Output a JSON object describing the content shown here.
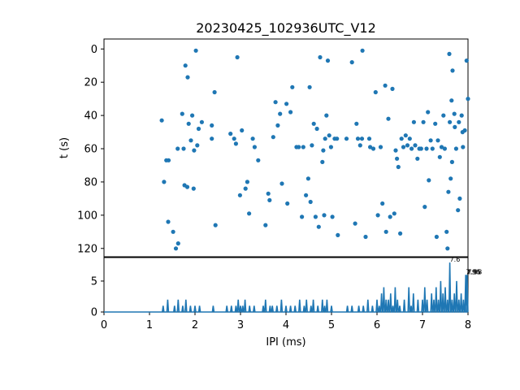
{
  "chart_data": [
    {
      "type": "scatter",
      "title": "20230425_102936UTC_V12",
      "xlabel": "",
      "ylabel": "t (s)",
      "xlim": [
        0,
        8
      ],
      "ylim": [
        125,
        -6
      ],
      "y_inverted": true,
      "yticks": [
        "0",
        "20",
        "40",
        "60",
        "80",
        "100",
        "120"
      ],
      "color": "#1f77b4",
      "points": [
        [
          1.27,
          43
        ],
        [
          1.32,
          80
        ],
        [
          1.37,
          67
        ],
        [
          1.42,
          67
        ],
        [
          1.41,
          104
        ],
        [
          1.52,
          110
        ],
        [
          1.58,
          120
        ],
        [
          1.63,
          117
        ],
        [
          1.62,
          60
        ],
        [
          1.72,
          39
        ],
        [
          1.75,
          60
        ],
        [
          1.77,
          82
        ],
        [
          1.83,
          83
        ],
        [
          1.79,
          10
        ],
        [
          1.84,
          17
        ],
        [
          1.86,
          45
        ],
        [
          1.91,
          55
        ],
        [
          1.94,
          40
        ],
        [
          1.97,
          84
        ],
        [
          2.02,
          1
        ],
        [
          2.05,
          58
        ],
        [
          2.08,
          48
        ],
        [
          2.15,
          44
        ],
        [
          1.98,
          61
        ],
        [
          2.37,
          54
        ],
        [
          2.37,
          46
        ],
        [
          2.43,
          26
        ],
        [
          2.45,
          106
        ],
        [
          2.78,
          51
        ],
        [
          2.86,
          54
        ],
        [
          2.9,
          57
        ],
        [
          2.93,
          5
        ],
        [
          2.99,
          88
        ],
        [
          3.03,
          49
        ],
        [
          3.11,
          84
        ],
        [
          3.15,
          80
        ],
        [
          3.19,
          99
        ],
        [
          3.27,
          54
        ],
        [
          3.31,
          59
        ],
        [
          3.39,
          67
        ],
        [
          3.55,
          106
        ],
        [
          3.61,
          87
        ],
        [
          3.64,
          91
        ],
        [
          3.72,
          53
        ],
        [
          3.77,
          32
        ],
        [
          3.82,
          46
        ],
        [
          3.87,
          39
        ],
        [
          3.91,
          81
        ],
        [
          4.01,
          33
        ],
        [
          4.03,
          93
        ],
        [
          4.1,
          38
        ],
        [
          4.14,
          23
        ],
        [
          4.23,
          59
        ],
        [
          4.28,
          59
        ],
        [
          4.35,
          101
        ],
        [
          4.38,
          59
        ],
        [
          4.44,
          88
        ],
        [
          4.49,
          78
        ],
        [
          4.52,
          23
        ],
        [
          4.54,
          92
        ],
        [
          4.57,
          58
        ],
        [
          4.61,
          45
        ],
        [
          4.65,
          101
        ],
        [
          4.68,
          48
        ],
        [
          4.72,
          107
        ],
        [
          4.75,
          5
        ],
        [
          4.8,
          68
        ],
        [
          4.82,
          61
        ],
        [
          4.84,
          100
        ],
        [
          4.86,
          54
        ],
        [
          4.89,
          40
        ],
        [
          4.92,
          7
        ],
        [
          4.95,
          52
        ],
        [
          4.99,
          59
        ],
        [
          5.02,
          101
        ],
        [
          5.07,
          54
        ],
        [
          5.12,
          54
        ],
        [
          5.14,
          112
        ],
        [
          5.33,
          54
        ],
        [
          5.45,
          8
        ],
        [
          5.52,
          105
        ],
        [
          5.55,
          45
        ],
        [
          5.58,
          54
        ],
        [
          5.63,
          58
        ],
        [
          5.67,
          54
        ],
        [
          5.68,
          1
        ],
        [
          5.75,
          113
        ],
        [
          5.83,
          54
        ],
        [
          5.85,
          59
        ],
        [
          5.92,
          60
        ],
        [
          5.97,
          26
        ],
        [
          6.02,
          100
        ],
        [
          6.08,
          59
        ],
        [
          6.12,
          93
        ],
        [
          6.18,
          22
        ],
        [
          6.2,
          110
        ],
        [
          6.25,
          42
        ],
        [
          6.29,
          101
        ],
        [
          6.34,
          24
        ],
        [
          6.38,
          99
        ],
        [
          6.41,
          61
        ],
        [
          6.44,
          66
        ],
        [
          6.47,
          71
        ],
        [
          6.51,
          111
        ],
        [
          6.54,
          54
        ],
        [
          6.58,
          59
        ],
        [
          6.63,
          52
        ],
        [
          6.67,
          58
        ],
        [
          6.72,
          54
        ],
        [
          6.76,
          60
        ],
        [
          6.81,
          44
        ],
        [
          6.84,
          58
        ],
        [
          6.89,
          66
        ],
        [
          6.93,
          60
        ],
        [
          6.97,
          60
        ],
        [
          7.02,
          44
        ],
        [
          7.05,
          95
        ],
        [
          7.09,
          60
        ],
        [
          7.12,
          38
        ],
        [
          7.14,
          79
        ],
        [
          7.18,
          55
        ],
        [
          7.22,
          60
        ],
        [
          7.28,
          45
        ],
        [
          7.31,
          113
        ],
        [
          7.34,
          55
        ],
        [
          7.38,
          65
        ],
        [
          7.42,
          59
        ],
        [
          7.46,
          40
        ],
        [
          7.49,
          60
        ],
        [
          7.53,
          110
        ],
        [
          7.57,
          86
        ],
        [
          7.6,
          44
        ],
        [
          7.62,
          78
        ],
        [
          7.65,
          68
        ],
        [
          7.7,
          39
        ],
        [
          7.74,
          60
        ],
        [
          7.78,
          97
        ],
        [
          7.82,
          90
        ],
        [
          7.86,
          40
        ],
        [
          7.89,
          59
        ],
        [
          7.93,
          49
        ],
        [
          7.97,
          7
        ],
        [
          8.0,
          30
        ],
        [
          7.59,
          3
        ],
        [
          7.66,
          13
        ],
        [
          7.55,
          120
        ],
        [
          7.64,
          31
        ],
        [
          7.71,
          47
        ],
        [
          7.8,
          44
        ],
        [
          7.88,
          50
        ]
      ]
    },
    {
      "type": "line",
      "xlabel": "IPI (ms)",
      "ylabel": "",
      "xlim": [
        0,
        8
      ],
      "ylim": [
        0,
        8.8
      ],
      "xticks": [
        "0",
        "1",
        "2",
        "3",
        "4",
        "5",
        "6",
        "7",
        "8"
      ],
      "yticks": [
        "0",
        "5"
      ],
      "color": "#1f77b4",
      "annotations": [
        {
          "text": "7.6",
          "x": 7.6,
          "y": 8
        },
        {
          "text": "7.96",
          "x": 7.95,
          "y": 6
        },
        {
          "text": "7.95",
          "x": 7.97,
          "y": 6
        },
        {
          "text": "7.98",
          "x": 7.99,
          "y": 6
        }
      ],
      "peaks": [
        [
          1.3,
          1
        ],
        [
          1.4,
          2
        ],
        [
          1.55,
          1
        ],
        [
          1.63,
          2
        ],
        [
          1.73,
          1
        ],
        [
          1.8,
          2
        ],
        [
          1.9,
          1
        ],
        [
          2.0,
          1
        ],
        [
          2.1,
          1
        ],
        [
          2.4,
          1
        ],
        [
          2.7,
          1
        ],
        [
          2.8,
          1
        ],
        [
          2.9,
          1
        ],
        [
          2.95,
          2
        ],
        [
          3.0,
          1
        ],
        [
          3.05,
          1
        ],
        [
          3.1,
          2
        ],
        [
          3.2,
          1
        ],
        [
          3.3,
          1
        ],
        [
          3.5,
          1
        ],
        [
          3.55,
          2
        ],
        [
          3.65,
          1
        ],
        [
          3.7,
          1
        ],
        [
          3.8,
          1
        ],
        [
          3.9,
          2
        ],
        [
          4.0,
          1
        ],
        [
          4.1,
          1
        ],
        [
          4.2,
          1
        ],
        [
          4.3,
          2
        ],
        [
          4.4,
          1
        ],
        [
          4.45,
          2
        ],
        [
          4.55,
          1
        ],
        [
          4.6,
          2
        ],
        [
          4.7,
          1
        ],
        [
          4.8,
          2
        ],
        [
          4.85,
          1
        ],
        [
          4.9,
          2
        ],
        [
          5.0,
          1
        ],
        [
          5.35,
          1
        ],
        [
          5.45,
          1
        ],
        [
          5.6,
          1
        ],
        [
          5.7,
          1
        ],
        [
          5.8,
          2
        ],
        [
          5.9,
          1
        ],
        [
          6.0,
          2
        ],
        [
          6.05,
          1
        ],
        [
          6.1,
          3
        ],
        [
          6.15,
          4
        ],
        [
          6.2,
          2
        ],
        [
          6.25,
          2
        ],
        [
          6.3,
          3
        ],
        [
          6.35,
          1
        ],
        [
          6.4,
          4
        ],
        [
          6.45,
          2
        ],
        [
          6.5,
          1
        ],
        [
          6.6,
          2
        ],
        [
          6.7,
          4
        ],
        [
          6.75,
          1
        ],
        [
          6.8,
          3
        ],
        [
          6.9,
          2
        ],
        [
          7.0,
          2
        ],
        [
          7.05,
          4
        ],
        [
          7.1,
          2
        ],
        [
          7.2,
          3
        ],
        [
          7.25,
          2
        ],
        [
          7.3,
          4
        ],
        [
          7.35,
          2
        ],
        [
          7.4,
          5
        ],
        [
          7.45,
          3
        ],
        [
          7.5,
          4
        ],
        [
          7.55,
          2
        ],
        [
          7.6,
          8
        ],
        [
          7.65,
          2
        ],
        [
          7.7,
          3
        ],
        [
          7.75,
          5
        ],
        [
          7.8,
          2
        ],
        [
          7.85,
          3
        ],
        [
          7.9,
          2
        ],
        [
          7.95,
          6
        ],
        [
          7.98,
          6
        ]
      ]
    }
  ]
}
